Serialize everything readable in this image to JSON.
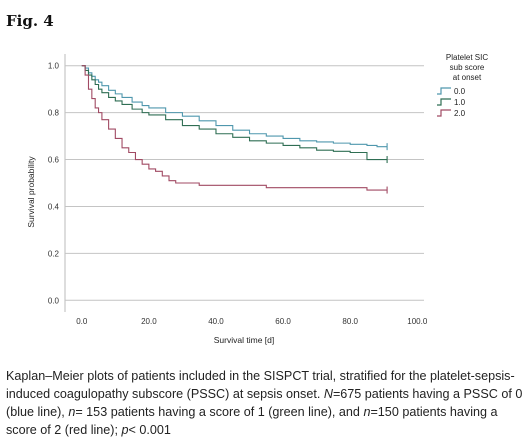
{
  "figure_label": "Fig. 4",
  "chart_data": {
    "type": "line",
    "subtype": "kaplan-meier step curves",
    "xlabel": "Survival time [d]",
    "ylabel": "Survival probability",
    "xlim": [
      -5,
      102
    ],
    "ylim": [
      -0.05,
      1.05
    ],
    "x_ticks": [
      "0.0",
      "20.0",
      "40.0",
      "60.0",
      "80.0",
      "100.0"
    ],
    "y_ticks": [
      "0.0",
      "0.2",
      "0.4",
      "0.6",
      "0.8",
      "1.0"
    ],
    "grid": "horizontal",
    "legend": {
      "title_lines": [
        "Platelet SIC",
        "sub score",
        "at onset"
      ],
      "placement": "top-right",
      "entries": [
        "0.0",
        "1.0",
        "2.0"
      ]
    },
    "series": [
      {
        "name": "0.0",
        "color": "#4f97ad",
        "points": [
          [
            0,
            1.0
          ],
          [
            1,
            0.99
          ],
          [
            2,
            0.97
          ],
          [
            3,
            0.955
          ],
          [
            4,
            0.94
          ],
          [
            5,
            0.93
          ],
          [
            6,
            0.915
          ],
          [
            8,
            0.895
          ],
          [
            10,
            0.88
          ],
          [
            12,
            0.865
          ],
          [
            15,
            0.845
          ],
          [
            18,
            0.83
          ],
          [
            20,
            0.82
          ],
          [
            25,
            0.8
          ],
          [
            30,
            0.785
          ],
          [
            35,
            0.765
          ],
          [
            40,
            0.745
          ],
          [
            45,
            0.725
          ],
          [
            50,
            0.71
          ],
          [
            55,
            0.7
          ],
          [
            60,
            0.69
          ],
          [
            65,
            0.68
          ],
          [
            70,
            0.675
          ],
          [
            75,
            0.67
          ],
          [
            80,
            0.665
          ],
          [
            85,
            0.66
          ],
          [
            88,
            0.655
          ],
          [
            91,
            0.655
          ]
        ]
      },
      {
        "name": "1.0",
        "color": "#2f6e53",
        "points": [
          [
            0,
            1.0
          ],
          [
            1,
            0.98
          ],
          [
            2,
            0.96
          ],
          [
            3,
            0.94
          ],
          [
            4,
            0.92
          ],
          [
            5,
            0.9
          ],
          [
            6,
            0.885
          ],
          [
            8,
            0.865
          ],
          [
            10,
            0.85
          ],
          [
            12,
            0.835
          ],
          [
            15,
            0.815
          ],
          [
            18,
            0.8
          ],
          [
            20,
            0.79
          ],
          [
            25,
            0.77
          ],
          [
            30,
            0.745
          ],
          [
            35,
            0.73
          ],
          [
            40,
            0.71
          ],
          [
            45,
            0.695
          ],
          [
            50,
            0.68
          ],
          [
            55,
            0.67
          ],
          [
            60,
            0.66
          ],
          [
            65,
            0.65
          ],
          [
            70,
            0.64
          ],
          [
            75,
            0.635
          ],
          [
            80,
            0.63
          ],
          [
            85,
            0.6
          ],
          [
            88,
            0.6
          ],
          [
            91,
            0.6
          ]
        ]
      },
      {
        "name": "2.0",
        "color": "#a14a63",
        "points": [
          [
            0,
            1.0
          ],
          [
            1,
            0.96
          ],
          [
            2,
            0.9
          ],
          [
            3,
            0.86
          ],
          [
            4,
            0.82
          ],
          [
            5,
            0.8
          ],
          [
            6,
            0.77
          ],
          [
            8,
            0.73
          ],
          [
            10,
            0.69
          ],
          [
            12,
            0.65
          ],
          [
            14,
            0.63
          ],
          [
            16,
            0.6
          ],
          [
            18,
            0.58
          ],
          [
            20,
            0.56
          ],
          [
            22,
            0.55
          ],
          [
            24,
            0.53
          ],
          [
            26,
            0.51
          ],
          [
            28,
            0.5
          ],
          [
            30,
            0.5
          ],
          [
            35,
            0.49
          ],
          [
            40,
            0.49
          ],
          [
            50,
            0.49
          ],
          [
            55,
            0.48
          ],
          [
            60,
            0.48
          ],
          [
            70,
            0.48
          ],
          [
            80,
            0.48
          ],
          [
            85,
            0.47
          ],
          [
            91,
            0.47
          ]
        ]
      }
    ]
  },
  "caption": {
    "text_1": "Kaplan–Meier plots of patients included in the SISPCT trial, stratified for the platelet-sepsis-induced coagulopathy subscore (PSSC) at sepsis onset. ",
    "n1": "N",
    "text_2": "=675 patients having a PSSC of 0 (blue line), ",
    "n2": "n",
    "text_3": "= 153 patients having a score of 1 (green line), and ",
    "n3": "n",
    "text_4": "=150 patients having a score of 2 (red line); ",
    "p": "p",
    "text_5": "< 0.001"
  }
}
